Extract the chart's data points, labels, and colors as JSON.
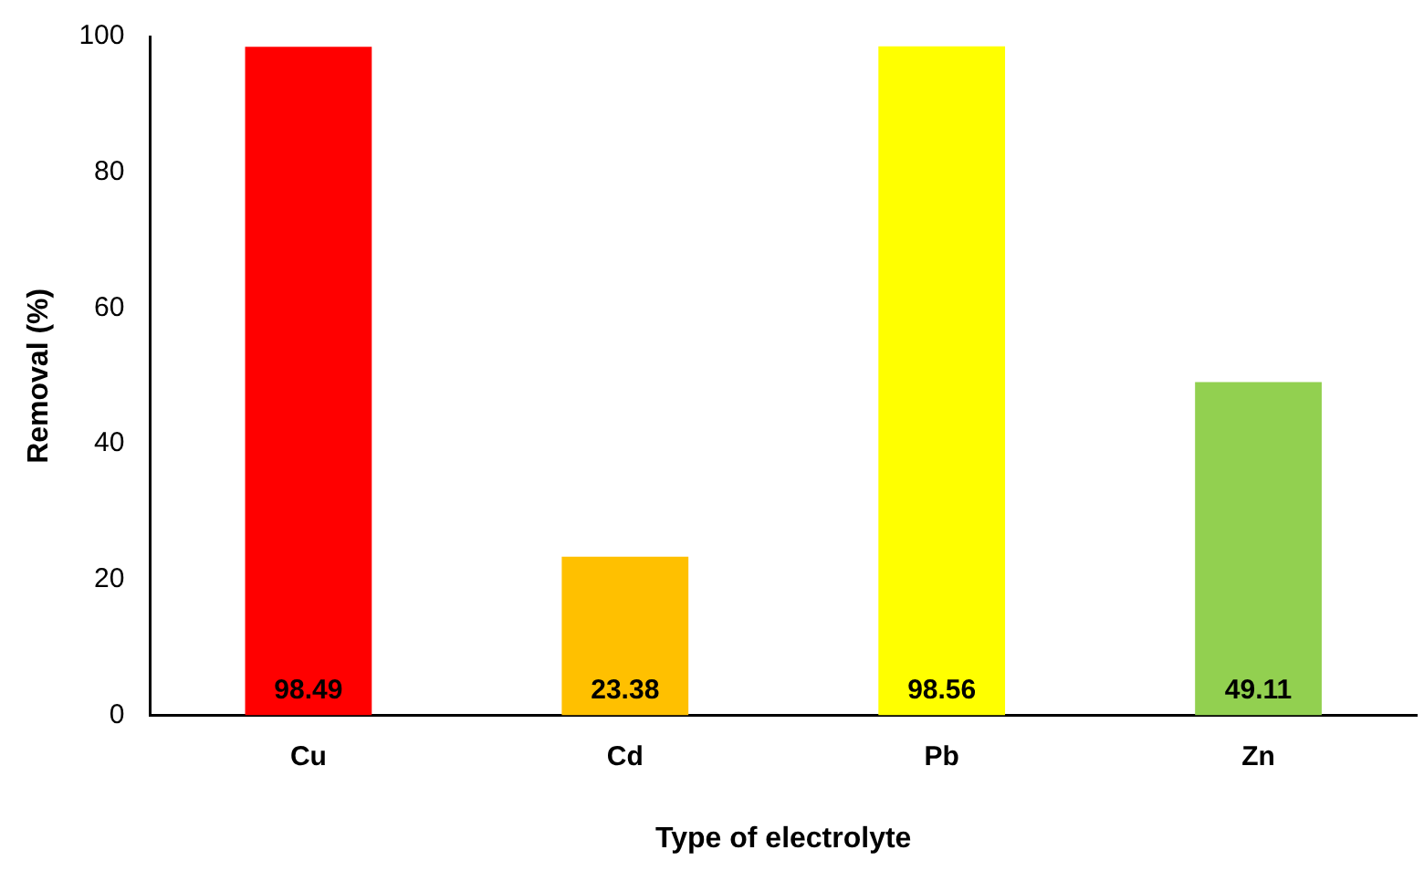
{
  "chart_data": {
    "type": "bar",
    "xlabel": "Type of electrolyte",
    "ylabel": "Removal (%)",
    "categories": [
      "Cu",
      "Cd",
      "Pb",
      "Zn"
    ],
    "values": [
      98.49,
      23.38,
      98.56,
      49.11
    ],
    "colors": [
      "#ff0000",
      "#ffc000",
      "#ffff00",
      "#92d050"
    ],
    "ylim": [
      0,
      100
    ],
    "yticks": [
      0,
      20,
      40,
      60,
      80,
      100
    ],
    "grid": false,
    "legend": false,
    "data_labels": true
  }
}
